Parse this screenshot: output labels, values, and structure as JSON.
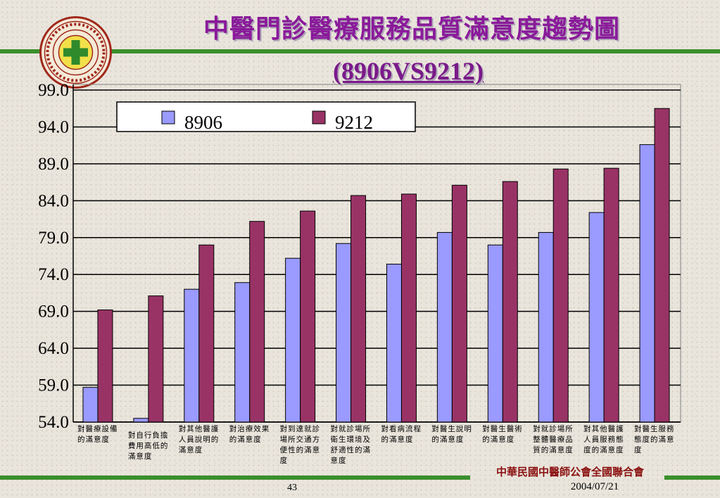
{
  "slide": {
    "title_line1": "中醫門診醫療服務品質滿意度趨勢圖",
    "title_line2": "(8906VS9212)",
    "organization": "中華民國中醫師公會全國聯合會",
    "date": "2004/07/21",
    "page_number": "43"
  },
  "colors": {
    "series_1": "#9a9aff",
    "series_2": "#993366",
    "divider": "#3a8f2c",
    "title": "#8a1a9a"
  },
  "chart_data": {
    "type": "bar",
    "ylim": [
      54.0,
      99.0
    ],
    "yticks": [
      "99.0",
      "94.0",
      "89.0",
      "84.0",
      "79.0",
      "74.0",
      "69.0",
      "64.0",
      "59.0",
      "54.0"
    ],
    "grid": true,
    "legend_position": "top",
    "categories": [
      "對醫療設備的滿意度",
      "對自行負擔費用高低的滿意度",
      "對其他醫護人員說明的滿意度",
      "對治療效果的滿意度",
      "對到達就診場所交通方便性的滿意度",
      "對就診場所衛生環境及舒適性的滿意度",
      "對看病流程的滿意度",
      "對醫生說明的滿意度",
      "對醫生醫術的滿意度",
      "對就診場所整體醫療品質的滿意度",
      "對其他醫護人員服務態度的滿意度",
      "對醫生服務態度的滿意度"
    ],
    "series": [
      {
        "name": "8906",
        "values": [
          58.7,
          54.5,
          72.0,
          72.9,
          76.2,
          78.2,
          75.4,
          79.7,
          78.0,
          79.7,
          82.4,
          91.6
        ]
      },
      {
        "name": "9212",
        "values": [
          69.2,
          71.1,
          78.0,
          81.2,
          82.6,
          84.7,
          84.9,
          86.1,
          86.6,
          88.3,
          88.4,
          96.5
        ]
      }
    ]
  }
}
